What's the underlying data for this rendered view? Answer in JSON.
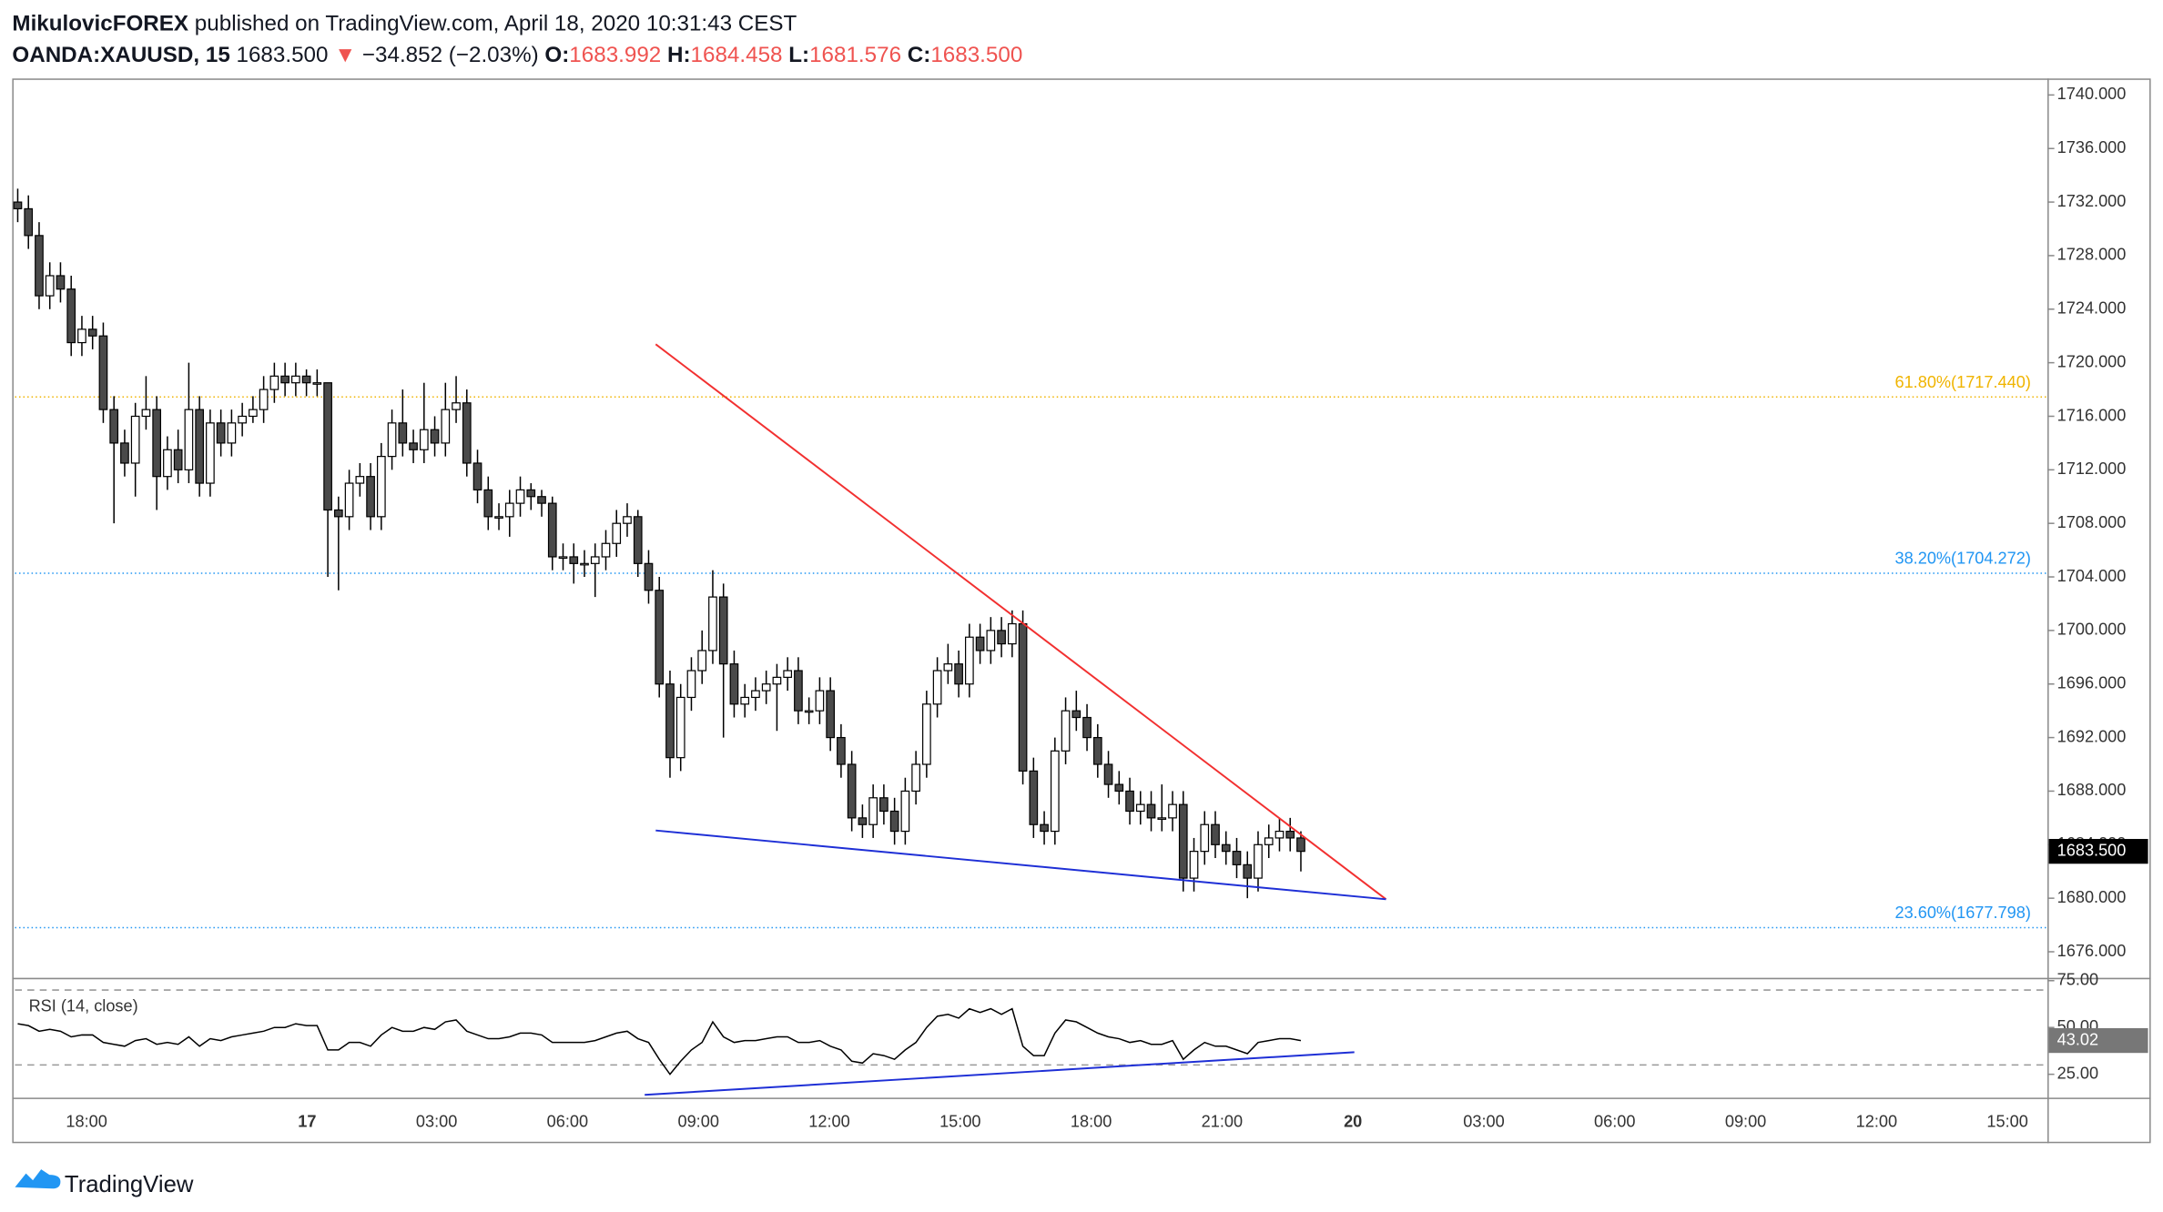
{
  "header": {
    "author": "MikulovicFOREX",
    "published": "published on TradingView.com, April 18, 2020 10:31:43 CEST",
    "symbol": "OANDA:XAUUSD, 15",
    "last": "1683.500",
    "arrow": "▼",
    "change": "−34.852 (−2.03%)",
    "o_label": "O:",
    "o": "1683.992",
    "h_label": "H:",
    "h": "1684.458",
    "l_label": "L:",
    "l": "1681.576",
    "c_label": "C:",
    "c": "1683.500"
  },
  "footer": "TradingView",
  "time_labels": [
    "18:00",
    "17",
    "03:00",
    "06:00",
    "09:00",
    "12:00",
    "15:00",
    "18:00",
    "21:00",
    "20",
    "03:00",
    "06:00",
    "09:00",
    "12:00",
    "15:00"
  ],
  "chart_data": [
    {
      "type": "candlestick",
      "up_color": "#ffffff",
      "down_color": "#4a4a4a",
      "wick_color": "#000000",
      "ylim": [
        1674.05,
        1741.23
      ],
      "yticks": [
        {
          "value": 1676,
          "label": "1676.000"
        },
        {
          "value": 1680,
          "label": "1680.000"
        },
        {
          "value": 1684,
          "label": "1684.000"
        },
        {
          "value": 1688,
          "label": "1688.000"
        },
        {
          "value": 1692,
          "label": "1692.000"
        },
        {
          "value": 1696,
          "label": "1696.000"
        },
        {
          "value": 1700,
          "label": "1700.000"
        },
        {
          "value": 1704,
          "label": "1704.000"
        },
        {
          "value": 1708,
          "label": "1708.000"
        },
        {
          "value": 1712,
          "label": "1712.000"
        },
        {
          "value": 1716,
          "label": "1716.000"
        },
        {
          "value": 1720,
          "label": "1720.000"
        },
        {
          "value": 1724,
          "label": "1724.000"
        },
        {
          "value": 1728,
          "label": "1728.000"
        },
        {
          "value": 1732,
          "label": "1732.000"
        },
        {
          "value": 1736,
          "label": "1736.000"
        },
        {
          "value": 1740,
          "label": "1740.000"
        }
      ],
      "open": [
        1732,
        1731.5,
        1729.5,
        1725,
        1726.5,
        1725.5,
        1721.5,
        1722.5,
        1722,
        1716.5,
        1714,
        1712.5,
        1716,
        1716.5,
        1711.5,
        1713.5,
        1712,
        1716.5,
        1711,
        1715.5,
        1714,
        1715.5,
        1716,
        1716.5,
        1718,
        1719,
        1718.5,
        1719,
        1718.5,
        1718.5,
        1709,
        1708.5,
        1711,
        1711.5,
        1708.5,
        1713,
        1715.5,
        1714,
        1713.5,
        1715,
        1714,
        1716.5,
        1717,
        1712.5,
        1710.5,
        1708.5,
        1708.5,
        1709.5,
        1710.5,
        1710,
        1709.5,
        1705.5,
        1705.5,
        1705,
        1705,
        1705.5,
        1706.5,
        1708,
        1708.5,
        1705,
        1703,
        1696,
        1690.5,
        1695,
        1697,
        1698.5,
        1702.5,
        1697.5,
        1694.5,
        1695,
        1695.5,
        1696,
        1696.5,
        1697,
        1694,
        1694,
        1695.5,
        1692,
        1690,
        1686,
        1685.5,
        1687.5,
        1686.5,
        1685,
        1688,
        1690,
        1694.5,
        1697,
        1697.5,
        1696,
        1699.5,
        1698.5,
        1700,
        1699,
        1700.5,
        1689.5,
        1685.5,
        1685,
        1691,
        1694,
        1693.5,
        1692,
        1690,
        1688.5,
        1688,
        1686.5,
        1687,
        1686,
        1686,
        1687,
        1681.5,
        1683.5,
        1685.5,
        1684,
        1683.5,
        1682.5,
        1681.5,
        1684,
        1684.5,
        1685,
        1684.5
      ],
      "high": [
        1733,
        1732.5,
        1730.5,
        1727.5,
        1727.5,
        1726.5,
        1723.5,
        1723.5,
        1723,
        1717.5,
        1715,
        1717,
        1719,
        1717.5,
        1714.5,
        1715,
        1720,
        1717.5,
        1716.5,
        1716.5,
        1716.5,
        1717,
        1717.5,
        1719,
        1720,
        1720,
        1720,
        1719.5,
        1719.5,
        1718.5,
        1710,
        1712,
        1712.5,
        1712.5,
        1714,
        1716.5,
        1718,
        1715,
        1718.5,
        1716,
        1718.5,
        1719,
        1718,
        1713.5,
        1711.5,
        1709.5,
        1710.5,
        1711.5,
        1711,
        1710.5,
        1710,
        1706.5,
        1706.5,
        1706,
        1706.5,
        1707.5,
        1709,
        1709.5,
        1709,
        1706,
        1704,
        1697,
        1696,
        1698,
        1700,
        1704.5,
        1703.5,
        1698.5,
        1696,
        1696.5,
        1697,
        1697.5,
        1698,
        1698,
        1695,
        1696.5,
        1696.5,
        1693,
        1691,
        1687,
        1688.5,
        1688.5,
        1687.5,
        1689,
        1691,
        1695.5,
        1698,
        1699,
        1698.5,
        1700.5,
        1700.5,
        1701,
        1701,
        1701.5,
        1701.5,
        1690.5,
        1686.5,
        1692,
        1695,
        1695.5,
        1694.5,
        1693,
        1691,
        1689.5,
        1689,
        1688,
        1688,
        1688.5,
        1688,
        1688,
        1684.5,
        1686.5,
        1686.5,
        1685,
        1684.5,
        1683.5,
        1685,
        1685.5,
        1686,
        1686,
        1685
      ],
      "low": [
        1730.5,
        1728.5,
        1724,
        1724,
        1724.5,
        1720.5,
        1720.5,
        1721,
        1715.5,
        1708,
        1711.5,
        1710,
        1715,
        1709,
        1710.5,
        1711,
        1711,
        1710,
        1710,
        1713,
        1713,
        1714.5,
        1715.5,
        1715.5,
        1717,
        1717.5,
        1717.5,
        1717.5,
        1717.5,
        1704,
        1703,
        1707.5,
        1710,
        1707.5,
        1707.5,
        1712,
        1713,
        1712.5,
        1712.5,
        1713,
        1713,
        1715.5,
        1711.5,
        1709.5,
        1707.5,
        1707.5,
        1707,
        1708.5,
        1709,
        1708.5,
        1704.5,
        1704.5,
        1703.5,
        1704,
        1702.5,
        1704.5,
        1705.5,
        1707,
        1704,
        1702,
        1695,
        1689,
        1689.5,
        1694,
        1696,
        1697.5,
        1692,
        1693.5,
        1693.5,
        1694,
        1694.5,
        1692.5,
        1695.5,
        1693,
        1693,
        1693,
        1691,
        1689,
        1685,
        1684.5,
        1684.5,
        1685.5,
        1684,
        1684,
        1687,
        1689,
        1693.5,
        1696,
        1695,
        1695,
        1697.5,
        1697.5,
        1698,
        1698,
        1688.5,
        1684.5,
        1684,
        1684,
        1690,
        1692.5,
        1691,
        1689,
        1687.5,
        1687,
        1685.5,
        1685.5,
        1685,
        1685,
        1685,
        1680.5,
        1680.5,
        1682.5,
        1683,
        1682.5,
        1681.5,
        1680,
        1680.5,
        1683,
        1683.5,
        1683.5,
        1682
      ],
      "close": [
        1731.5,
        1729.5,
        1725,
        1726.5,
        1725.5,
        1721.5,
        1722.5,
        1722,
        1716.5,
        1714,
        1712.5,
        1716,
        1716.5,
        1711.5,
        1713.5,
        1712,
        1716.5,
        1711,
        1715.5,
        1714,
        1715.5,
        1716,
        1716.5,
        1718,
        1719,
        1718.5,
        1719,
        1718.5,
        1718.5,
        1709,
        1708.5,
        1711,
        1711.5,
        1708.5,
        1713,
        1715.5,
        1714,
        1713.5,
        1715,
        1714,
        1716.5,
        1717,
        1712.5,
        1710.5,
        1708.5,
        1708.5,
        1709.5,
        1710.5,
        1710,
        1709.5,
        1705.5,
        1705.5,
        1705,
        1705,
        1705.5,
        1706.5,
        1708,
        1708.5,
        1705,
        1703,
        1696,
        1690.5,
        1695,
        1697,
        1698.5,
        1702.5,
        1697.5,
        1694.5,
        1695,
        1695.5,
        1696,
        1696.5,
        1697,
        1694,
        1694,
        1695.5,
        1692,
        1690,
        1686,
        1685.5,
        1687.5,
        1686.5,
        1685,
        1688,
        1690,
        1694.5,
        1697,
        1697.5,
        1696,
        1699.5,
        1698.5,
        1700,
        1699,
        1700.5,
        1689.5,
        1685.5,
        1685,
        1691,
        1694,
        1693.5,
        1692,
        1690,
        1688.5,
        1688,
        1686.5,
        1687,
        1686,
        1686,
        1687,
        1681.5,
        1683.5,
        1685.5,
        1684,
        1683.5,
        1682.5,
        1681.5,
        1684,
        1684.5,
        1685,
        1684.5,
        1683.5
      ],
      "last_price": {
        "value": 1683.5,
        "label": "1683.500"
      },
      "fib_levels": [
        {
          "value": 1717.44,
          "label": "61.80%(1717.440)",
          "color": "#f0b400"
        },
        {
          "value": 1704.272,
          "label": "38.20%(1704.272)",
          "color": "#2196f3"
        },
        {
          "value": 1677.798,
          "label": "23.60%(1677.798)",
          "color": "#2196f3"
        }
      ],
      "trendlines": [
        {
          "color": "#f23030",
          "values": [
            1721.38,
            1679.92
          ]
        },
        {
          "color": "#1e2fd6",
          "values": [
            1685.06,
            1679.92
          ]
        }
      ]
    },
    {
      "type": "line",
      "title": "RSI (14, close)",
      "color": "#000000",
      "ylim": [
        12.5,
        76.5
      ],
      "yticks": [
        {
          "value": 25,
          "label": "25.00"
        },
        {
          "value": 50,
          "label": "50.00"
        },
        {
          "value": 75,
          "label": "75.00"
        }
      ],
      "bands": [
        70,
        30
      ],
      "values": [
        52,
        51,
        48,
        49,
        48,
        45,
        46,
        46,
        42,
        41,
        40,
        43,
        44,
        41,
        42,
        41,
        45,
        40,
        44,
        43,
        45,
        46,
        47,
        48,
        50,
        50,
        52,
        51,
        51,
        38,
        38,
        42,
        42,
        40,
        46,
        50,
        48,
        48,
        50,
        49,
        53,
        54,
        48,
        46,
        44,
        44,
        45,
        47,
        47,
        46,
        42,
        42,
        42,
        42,
        43,
        45,
        47,
        48,
        44,
        42,
        33,
        25,
        32,
        38,
        42,
        53,
        45,
        42,
        43,
        43,
        44,
        45,
        45,
        42,
        42,
        43,
        40,
        38,
        32,
        31,
        36,
        35,
        33,
        38,
        42,
        50,
        56,
        57,
        55,
        60,
        58,
        60,
        57,
        60,
        40,
        35,
        35,
        47,
        54,
        53,
        50,
        47,
        45,
        44,
        42,
        43,
        41,
        41,
        43,
        33,
        38,
        42,
        40,
        40,
        38,
        36,
        42,
        43,
        44,
        44,
        43.02
      ],
      "last_value": {
        "value": 43.02,
        "label": "43.02"
      },
      "trendline": {
        "color": "#1e2fd6",
        "values": [
          14,
          36.8
        ]
      }
    }
  ]
}
